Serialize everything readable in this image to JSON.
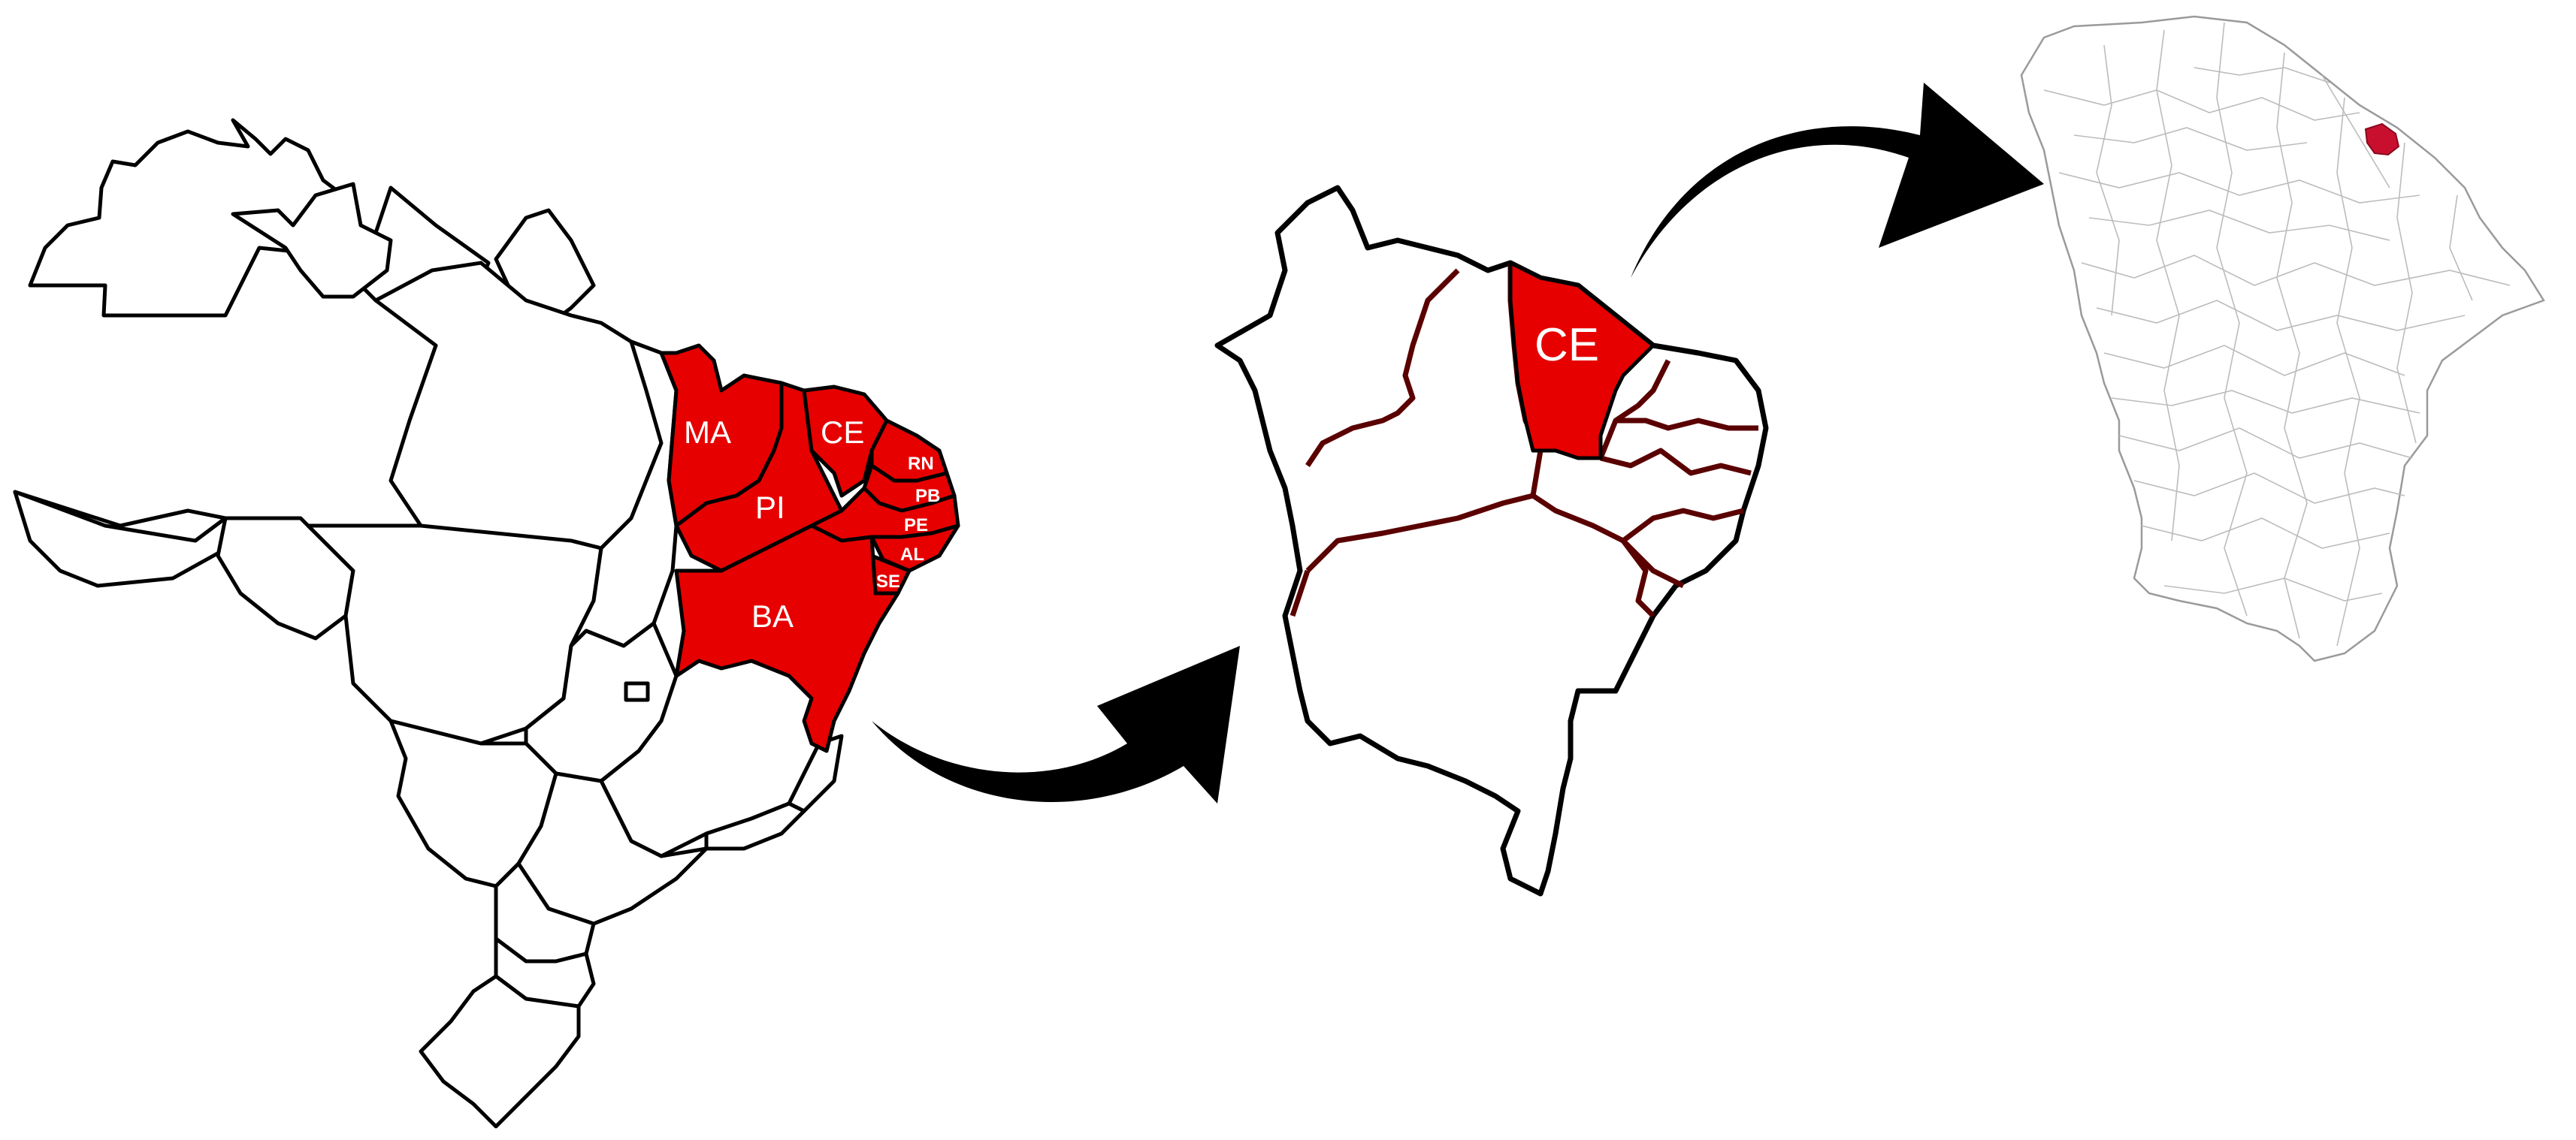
{
  "colors": {
    "highlight": "#e60000",
    "municipality_highlight": "#c8102e",
    "outline": "#000000",
    "background": "#ffffff"
  },
  "brazil_map": {
    "northeast_states": {
      "MA": "MA",
      "PI": "PI",
      "CE": "CE",
      "RN": "RN",
      "PB": "PB",
      "PE": "PE",
      "AL": "AL",
      "SE": "SE",
      "BA": "BA"
    }
  },
  "northeast_map": {
    "highlighted_state": "CE"
  },
  "ceara_map": {
    "highlighted_municipality_count": 1
  },
  "icons": {
    "arrow1": "curved-arrow-icon",
    "arrow2": "curved-arrow-icon"
  }
}
